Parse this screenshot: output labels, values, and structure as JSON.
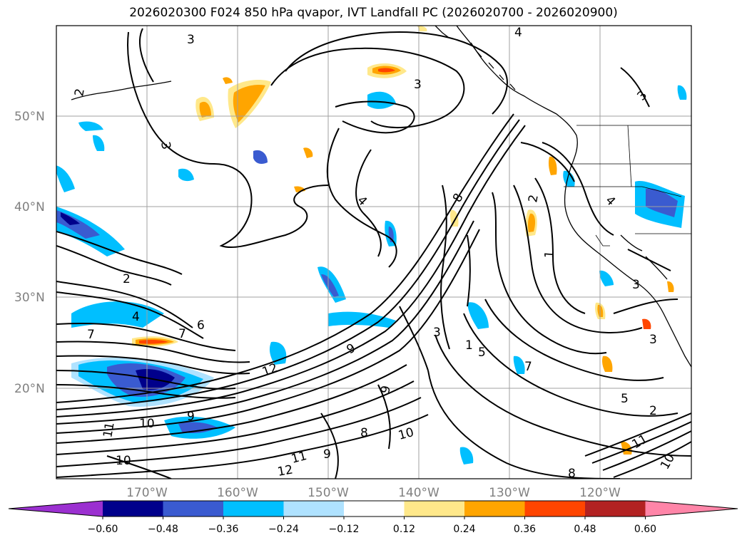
{
  "title": "2026020300 F024 850 hPa qvapor, IVT Landfall PC (2026020700 - 2026020900)",
  "map": {
    "lat_labels": [
      "50°N",
      "40°N",
      "30°N",
      "20°N"
    ],
    "lon_labels": [
      "170°W",
      "160°W",
      "150°W",
      "140°W",
      "130°W",
      "120°W"
    ],
    "contour_labels": [
      "3",
      "4",
      "2",
      "3",
      "3",
      "4",
      "3",
      "2",
      "4",
      "2",
      "1",
      "3",
      "7",
      "6",
      "7",
      "8",
      "4",
      "9",
      "3",
      "5",
      "7",
      "3",
      "2",
      "12",
      "9",
      "10",
      "11",
      "10",
      "11",
      "12",
      "9",
      "10",
      "8",
      "5",
      "9",
      "11",
      "8",
      "10",
      "1"
    ]
  },
  "colorbar": {
    "ticks": [
      "−0.60",
      "−0.48",
      "−0.36",
      "−0.24",
      "−0.12",
      "0.12",
      "0.24",
      "0.36",
      "0.48",
      "0.60"
    ],
    "colors": [
      "#9b30d0",
      "#00008b",
      "#3a5bd0",
      "#00bfff",
      "#afe2ff",
      "#ffffff",
      "#ffe88a",
      "#ffa500",
      "#ff4500",
      "#b22222",
      "#ff85a8"
    ]
  },
  "colors": {
    "land_outline": "#000000",
    "grid": "#a0a0a0",
    "label_gray": "#808080"
  }
}
